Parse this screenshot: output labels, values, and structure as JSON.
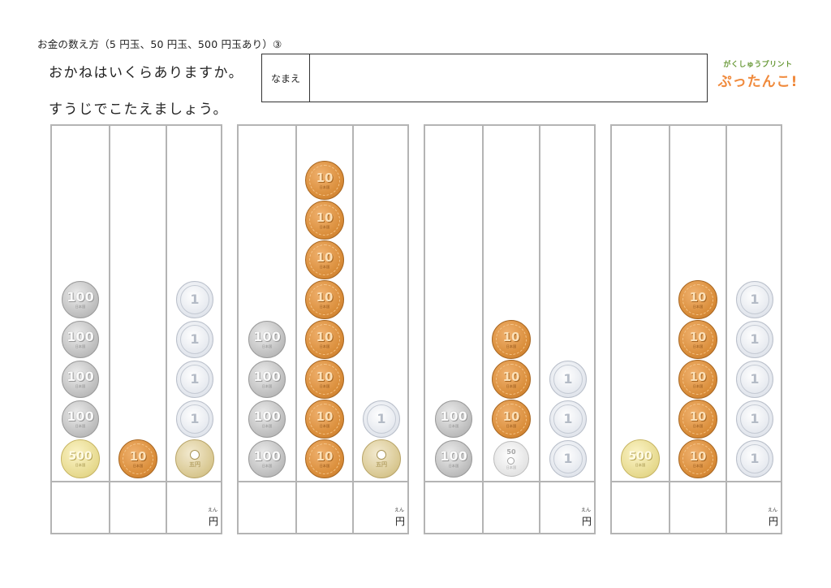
{
  "header": {
    "title": "お金の数え方（5 円玉、50 円玉、500 円玉あり）③",
    "instruction_1": "おかねはいくらありますか。",
    "instruction_2": "すうじでこたえましょう。",
    "name_label": "なまえ",
    "logo_top": "がくしゅうプリント",
    "logo_main": "ぷったんこ!"
  },
  "answer": {
    "unit": "円",
    "unit_ruby": "えん"
  },
  "coin_labels": {
    "c100": "100",
    "c10": "10",
    "c1": "1",
    "c500": "500",
    "c50": "50",
    "c5_text": "五円",
    "c100_sub": "日本国",
    "c10_sub": "日本国",
    "c500_sub": "日本国",
    "c50_sub": "日本国"
  },
  "problems": [
    {
      "columns": [
        [
          "c100",
          "c100",
          "c100",
          "c100",
          "c500"
        ],
        [
          "c10"
        ],
        [
          "c1",
          "c1",
          "c1",
          "c1",
          "c5"
        ]
      ]
    },
    {
      "columns": [
        [
          "c100",
          "c100",
          "c100",
          "c100"
        ],
        [
          "c10",
          "c10",
          "c10",
          "c10",
          "c10",
          "c10",
          "c10",
          "c10"
        ],
        [
          "c1",
          "c5"
        ]
      ]
    },
    {
      "columns": [
        [
          "c100",
          "c100"
        ],
        [
          "c10",
          "c10",
          "c10",
          "c50"
        ],
        [
          "c1",
          "c1",
          "c1"
        ]
      ]
    },
    {
      "columns": [
        [
          "c500"
        ],
        [
          "c10",
          "c10",
          "c10",
          "c10",
          "c10"
        ],
        [
          "c1",
          "c1",
          "c1",
          "c1",
          "c1"
        ]
      ]
    }
  ],
  "colors": {
    "grid": "#b4b4b4",
    "copper": "#d98c38",
    "silver": "#bcbcbc",
    "gold": "#e6d98d",
    "logo_orange": "#f08a3c",
    "logo_green": "#6a9a3a"
  }
}
